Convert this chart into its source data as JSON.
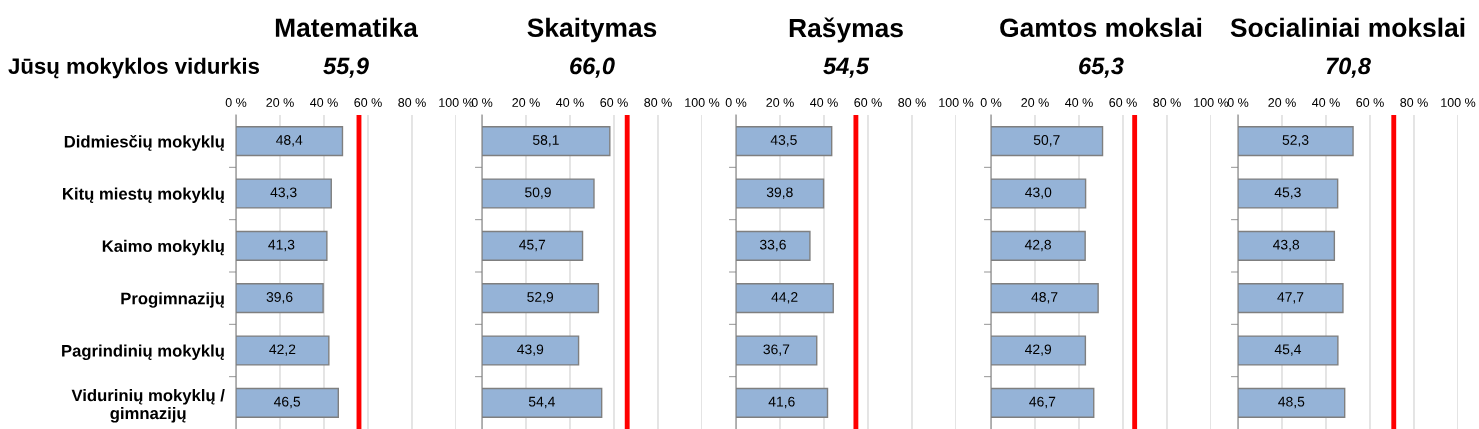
{
  "chart_data": [
    {
      "type": "bar",
      "orientation": "horizontal",
      "title": "Matematika",
      "subtitle": "55,9",
      "annotations": [
        "Jūsų mokyklos vidurkis"
      ],
      "categories": [
        "Didmiesčių mokyklų",
        "Kitų miestų mokyklų",
        "Kaimo mokyklų",
        "Progimnazijų",
        "Pagrindinių mokyklų",
        "Vidurinių mokyklų / gimnazijų"
      ],
      "values": [
        48.4,
        43.3,
        41.3,
        39.6,
        42.2,
        46.5
      ],
      "value_labels": [
        "48,4",
        "43,3",
        "41,3",
        "39,6",
        "42,2",
        "46,5"
      ],
      "color": "#95b3d7",
      "xlim": [
        0,
        100
      ],
      "xticks": [
        {
          "value": 0,
          "label": "0 %"
        },
        {
          "value": 20,
          "label": "20 %"
        },
        {
          "value": 40,
          "label": "40 %"
        },
        {
          "value": 60,
          "label": "60 %"
        },
        {
          "value": 80,
          "label": "80 %"
        },
        {
          "value": 100,
          "label": "100 %"
        }
      ],
      "grid": "x",
      "ref_lines": [
        {
          "axis": "x",
          "value": 55.9,
          "color": "#ff0000"
        }
      ]
    },
    {
      "type": "bar",
      "orientation": "horizontal",
      "title": "Skaitymas",
      "subtitle": "66,0",
      "categories": [
        null,
        null,
        null,
        null,
        null,
        null
      ],
      "values": [
        58.1,
        50.9,
        45.7,
        52.9,
        43.9,
        54.4
      ],
      "value_labels": [
        "58,1",
        "50,9",
        "45,7",
        "52,9",
        "43,9",
        "54,4"
      ],
      "color": "#95b3d7",
      "xlim": [
        0,
        100
      ],
      "xticks": [
        {
          "value": 0,
          "label": "0 %"
        },
        {
          "value": 20,
          "label": "20 %"
        },
        {
          "value": 40,
          "label": "40 %"
        },
        {
          "value": 60,
          "label": "60 %"
        },
        {
          "value": 80,
          "label": "80 %"
        },
        {
          "value": 100,
          "label": "100 %"
        }
      ],
      "grid": "x",
      "tick_labels": "x",
      "ref_lines": [
        {
          "axis": "x",
          "value": 66.0,
          "color": "#ff0000"
        }
      ]
    },
    {
      "type": "bar",
      "orientation": "horizontal",
      "title": "Rašymas",
      "subtitle": "54,5",
      "categories": [
        null,
        null,
        null,
        null,
        null,
        null
      ],
      "values": [
        43.5,
        39.8,
        33.6,
        44.2,
        36.7,
        41.6
      ],
      "value_labels": [
        "43,5",
        "39,8",
        "33,6",
        "44,2",
        "36,7",
        "41,6"
      ],
      "color": "#95b3d7",
      "xlim": [
        0,
        100
      ],
      "xticks": [
        {
          "value": 0,
          "label": "0 %"
        },
        {
          "value": 20,
          "label": "20 %"
        },
        {
          "value": 40,
          "label": "40 %"
        },
        {
          "value": 60,
          "label": "60 %"
        },
        {
          "value": 80,
          "label": "80 %"
        },
        {
          "value": 100,
          "label": "100 %"
        }
      ],
      "grid": "x",
      "tick_labels": "x",
      "ref_lines": [
        {
          "axis": "x",
          "value": 54.5,
          "color": "#ff0000"
        }
      ]
    },
    {
      "type": "bar",
      "orientation": "horizontal",
      "title": "Gamtos mokslai",
      "subtitle": "65,3",
      "categories": [
        null,
        null,
        null,
        null,
        null,
        null
      ],
      "values": [
        50.7,
        43.0,
        42.8,
        48.7,
        42.9,
        46.7
      ],
      "value_labels": [
        "50,7",
        "43,0",
        "42,8",
        "48,7",
        "42,9",
        "46,7"
      ],
      "color": "#95b3d7",
      "xlim": [
        0,
        100
      ],
      "xticks": [
        {
          "value": 0,
          "label": "0 %"
        },
        {
          "value": 20,
          "label": "20 %"
        },
        {
          "value": 40,
          "label": "40 %"
        },
        {
          "value": 60,
          "label": "60 %"
        },
        {
          "value": 80,
          "label": "80 %"
        },
        {
          "value": 100,
          "label": "100 %"
        }
      ],
      "grid": "x",
      "tick_labels": "x",
      "ref_lines": [
        {
          "axis": "x",
          "value": 65.3,
          "color": "#ff0000"
        }
      ]
    },
    {
      "type": "bar",
      "orientation": "horizontal",
      "title": "Socialiniai mokslai",
      "subtitle": "70,8",
      "categories": [
        null,
        null,
        null,
        null,
        null,
        null
      ],
      "values": [
        52.3,
        45.3,
        43.8,
        47.7,
        45.4,
        48.5
      ],
      "value_labels": [
        "52,3",
        "45,3",
        "43,8",
        "47,7",
        "45,4",
        "48,5"
      ],
      "color": "#95b3d7",
      "xlim": [
        0,
        100
      ],
      "xticks": [
        {
          "value": 0,
          "label": "0 %"
        },
        {
          "value": 20,
          "label": "20 %"
        },
        {
          "value": 40,
          "label": "40 %"
        },
        {
          "value": 60,
          "label": "60 %"
        },
        {
          "value": 80,
          "label": "80 %"
        },
        {
          "value": 100,
          "label": "100 %"
        }
      ],
      "grid": "x",
      "tick_labels": "x",
      "ref_lines": [
        {
          "axis": "x",
          "value": 70.8,
          "color": "#ff0000"
        }
      ]
    }
  ]
}
